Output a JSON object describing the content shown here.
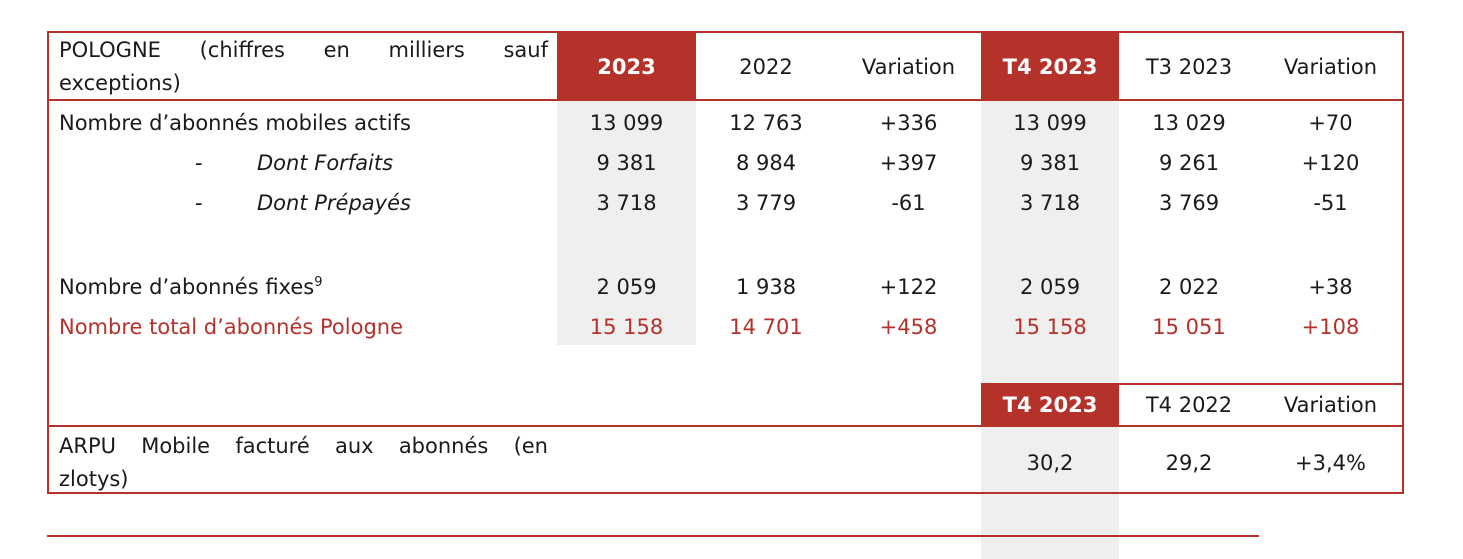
{
  "header": {
    "label_line1": "POLOGNE (chiffres en milliers sauf",
    "label_line2": "exceptions)",
    "cols": [
      "2023",
      "2022",
      "Variation",
      "T4 2023",
      "T3 2023",
      "Variation"
    ]
  },
  "rows": [
    {
      "label": "Nombre d’abonnés mobiles actifs",
      "values": [
        "13 099",
        "12 763",
        "+336",
        "13 099",
        "13 029",
        "+70"
      ]
    },
    {
      "prefix": "-",
      "label": "Dont Forfaits",
      "values": [
        "9 381",
        "8 984",
        "+397",
        "9 381",
        "9 261",
        "+120"
      ]
    },
    {
      "prefix": "-",
      "label": "Dont Prépayés",
      "values": [
        "3 718",
        "3 779",
        "-61",
        "3 718",
        "3 769",
        "-51"
      ]
    },
    {
      "label": "Nombre d’abonnés fixes",
      "sup": "9",
      "values": [
        "2 059",
        "1 938",
        "+122",
        "2 059",
        "2 022",
        "+38"
      ]
    },
    {
      "label": "Nombre total d’abonnés Pologne",
      "values": [
        "15 158",
        "14 701",
        "+458",
        "15 158",
        "15 051",
        "+108"
      ]
    }
  ],
  "arpu": {
    "cols": [
      "T4 2023",
      "T4 2022",
      "Variation"
    ],
    "label_line1": "ARPU Mobile facturé aux abonnés (en",
    "label_line2": "zlotys)",
    "values": [
      "30,2",
      "29,2",
      "+3,4%"
    ]
  },
  "colors": {
    "accent": "#b5322b",
    "shade": "#efefef"
  }
}
